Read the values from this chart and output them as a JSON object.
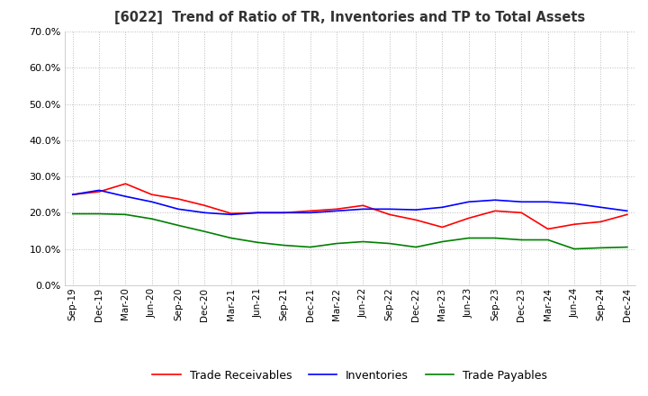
{
  "title": "[6022]  Trend of Ratio of TR, Inventories and TP to Total Assets",
  "x_labels": [
    "Sep-19",
    "Dec-19",
    "Mar-20",
    "Jun-20",
    "Sep-20",
    "Dec-20",
    "Mar-21",
    "Jun-21",
    "Sep-21",
    "Dec-21",
    "Mar-22",
    "Jun-22",
    "Sep-22",
    "Dec-22",
    "Mar-23",
    "Jun-23",
    "Sep-23",
    "Dec-23",
    "Mar-24",
    "Jun-24",
    "Sep-24",
    "Dec-24"
  ],
  "ylim": [
    0.0,
    0.7
  ],
  "yticks": [
    0.0,
    0.1,
    0.2,
    0.3,
    0.4,
    0.5,
    0.6,
    0.7
  ],
  "trade_receivables": [
    0.25,
    0.258,
    0.28,
    0.25,
    0.238,
    0.22,
    0.198,
    0.2,
    0.2,
    0.205,
    0.21,
    0.22,
    0.195,
    0.18,
    0.16,
    0.185,
    0.205,
    0.2,
    0.155,
    0.168,
    0.175,
    0.195
  ],
  "inventories": [
    0.25,
    0.262,
    0.245,
    0.23,
    0.21,
    0.2,
    0.195,
    0.2,
    0.2,
    0.2,
    0.205,
    0.21,
    0.21,
    0.208,
    0.215,
    0.23,
    0.235,
    0.23,
    0.23,
    0.225,
    0.215,
    0.205
  ],
  "trade_payables": [
    0.197,
    0.197,
    0.195,
    0.183,
    0.165,
    0.148,
    0.13,
    0.118,
    0.11,
    0.105,
    0.115,
    0.12,
    0.115,
    0.105,
    0.12,
    0.13,
    0.13,
    0.125,
    0.125,
    0.1,
    0.103,
    0.105
  ],
  "tr_color": "#FF0000",
  "inv_color": "#0000FF",
  "tp_color": "#008000",
  "background_color": "#FFFFFF",
  "grid_color": "#BBBBBB",
  "legend_labels": [
    "Trade Receivables",
    "Inventories",
    "Trade Payables"
  ]
}
